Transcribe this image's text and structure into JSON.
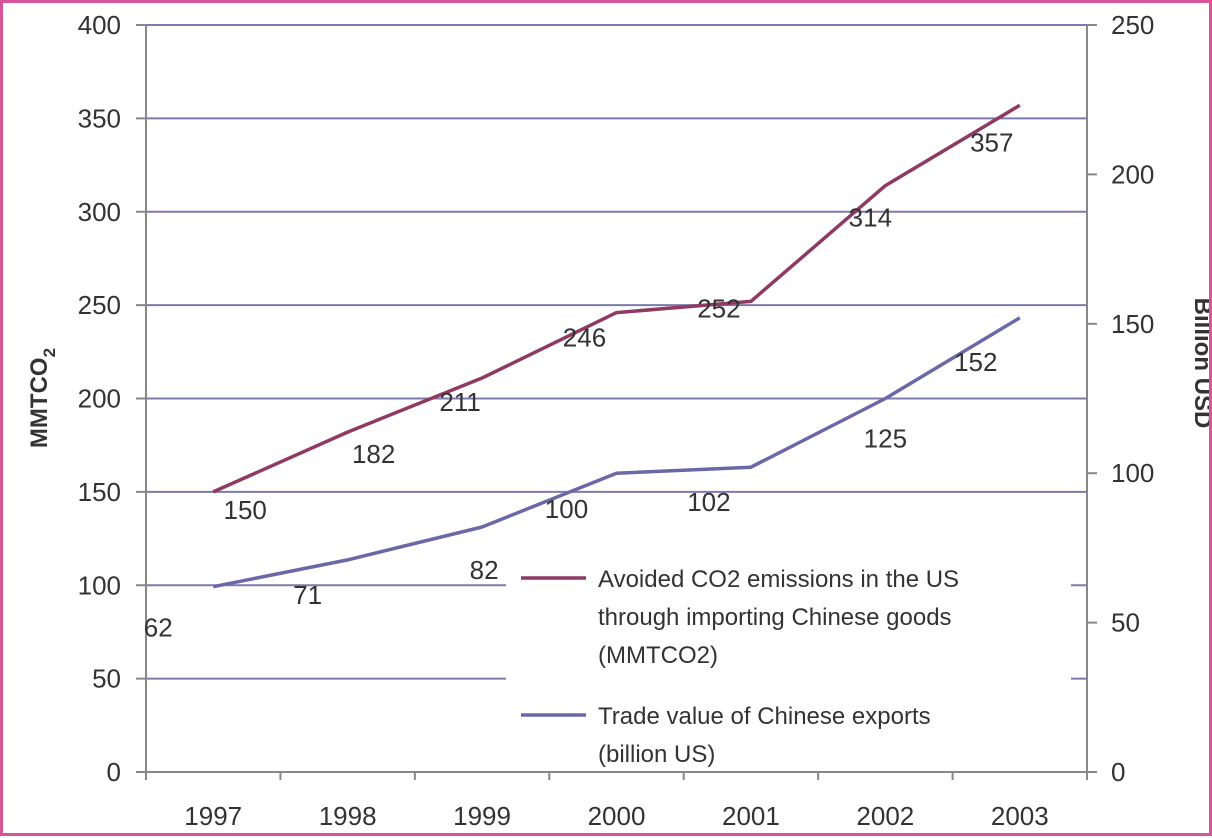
{
  "chart_data": {
    "type": "line",
    "title": "",
    "categories": [
      "1997",
      "1998",
      "1999",
      "2000",
      "2001",
      "2002",
      "2003"
    ],
    "y_left": {
      "label_main": "MMTCO",
      "label_sub": "2",
      "ylim": [
        0,
        400
      ],
      "ticks": [
        "0",
        "50",
        "100",
        "150",
        "200",
        "250",
        "300",
        "350",
        "400"
      ]
    },
    "y_right": {
      "label": "Billion USD",
      "ylim": [
        0,
        250
      ],
      "ticks": [
        "0",
        "50",
        "100",
        "150",
        "200",
        "250"
      ]
    },
    "grid": true,
    "legend_position": "center-right",
    "series": [
      {
        "name": "Avoided CO2 emissions in the US through importing Chinese goods (MMTCO2)",
        "legend_lines": [
          "Avoided CO2 emissions in the US",
          "through importing Chinese goods",
          "(MMTCO2)"
        ],
        "axis": "left",
        "color": "#8e3a63",
        "values": [
          150,
          182,
          211,
          246,
          252,
          314,
          357
        ],
        "labels": [
          "150",
          "182",
          "211",
          "246",
          "252",
          "314",
          "357"
        ]
      },
      {
        "name": "Trade value of Chinese exports (billion US)",
        "legend_lines": [
          "Trade value of Chinese exports",
          "(billion US)"
        ],
        "axis": "right",
        "color": "#6b68a8",
        "values": [
          62,
          71,
          82,
          100,
          102,
          125,
          152
        ],
        "labels": [
          "62",
          "71",
          "82",
          "100",
          "102",
          "125",
          "152"
        ]
      }
    ]
  }
}
